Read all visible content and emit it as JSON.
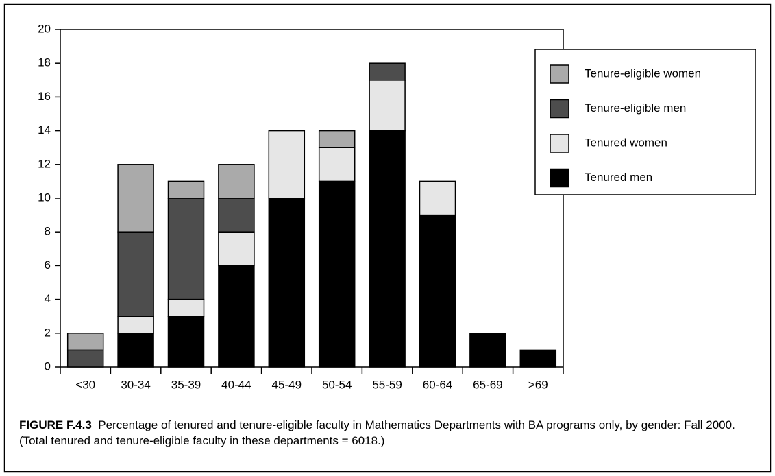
{
  "chart_data": {
    "type": "stacked_bar",
    "categories": [
      "<30",
      "30-34",
      "35-39",
      "40-44",
      "45-49",
      "50-54",
      "55-59",
      "60-64",
      "65-69",
      ">69"
    ],
    "series": [
      {
        "name": "Tenured men",
        "color": "#000000",
        "values": [
          0,
          2,
          3,
          6,
          10,
          11,
          14,
          9,
          2,
          1
        ]
      },
      {
        "name": "Tenured women",
        "color": "#e6e6e6",
        "values": [
          0,
          1,
          1,
          2,
          4,
          2,
          3,
          2,
          0,
          0
        ]
      },
      {
        "name": "Tenure-eligible men",
        "color": "#4d4d4d",
        "values": [
          1,
          5,
          6,
          2,
          0,
          0,
          1,
          0,
          0,
          0
        ]
      },
      {
        "name": "Tenure-eligible women",
        "color": "#aaaaaa",
        "values": [
          1,
          4,
          1,
          2,
          0,
          1,
          0,
          0,
          0,
          0
        ]
      }
    ],
    "ylim": [
      0,
      20
    ],
    "yticks": [
      0,
      2,
      4,
      6,
      8,
      10,
      12,
      14,
      16,
      18,
      20
    ],
    "legend": "upper right",
    "caption_label": "FIGURE F.4.3",
    "caption": "Percentage of tenured and tenure-eligible faculty in Mathematics Departments with BA programs only, by gender: Fall 2000. (Total tenured and tenure-eligible faculty in these departments = 6018.)"
  }
}
